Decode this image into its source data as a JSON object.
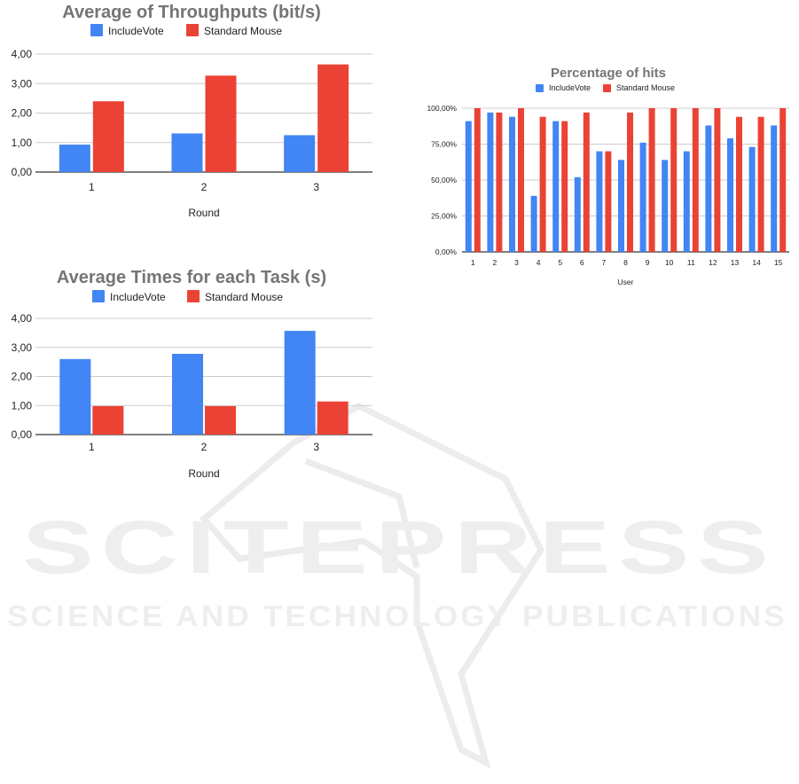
{
  "watermark": {
    "brand": "SCITEPRESS",
    "tagline": "SCIENCE AND TECHNOLOGY PUBLICATIONS"
  },
  "colors": {
    "series_a": "#4285f4",
    "series_b": "#ea4335",
    "grid": "#cccccc",
    "axis": "#333333",
    "title": "#757575"
  },
  "chart_data": [
    {
      "id": "throughput",
      "type": "bar",
      "title": "Average of Throughputs (bit/s)",
      "xlabel": "Round",
      "ylabel": "",
      "categories": [
        "1",
        "2",
        "3"
      ],
      "yticks": [
        "0,00",
        "1,00",
        "2,00",
        "3,00",
        "4,00"
      ],
      "ylim": [
        0,
        4
      ],
      "legend_position": "top",
      "grid": true,
      "series": [
        {
          "name": "IncludeVote",
          "color": "#4285f4",
          "values": [
            0.93,
            1.31,
            1.25
          ]
        },
        {
          "name": "Standard Mouse",
          "color": "#ea4335",
          "values": [
            2.4,
            3.27,
            3.65
          ]
        }
      ]
    },
    {
      "id": "times",
      "type": "bar",
      "title": "Average Times for each Task (s)",
      "xlabel": "Round",
      "ylabel": "",
      "categories": [
        "1",
        "2",
        "3"
      ],
      "yticks": [
        "0,00",
        "1,00",
        "2,00",
        "3,00",
        "4,00"
      ],
      "ylim": [
        0,
        4
      ],
      "legend_position": "top",
      "grid": true,
      "series": [
        {
          "name": "IncludeVote",
          "color": "#4285f4",
          "values": [
            2.6,
            2.78,
            3.57
          ]
        },
        {
          "name": "Standard Mouse",
          "color": "#ea4335",
          "values": [
            0.98,
            0.98,
            1.14
          ]
        }
      ]
    },
    {
      "id": "hits",
      "type": "bar",
      "title": "Percentage of hits",
      "xlabel": "User",
      "ylabel": "",
      "categories": [
        "1",
        "2",
        "3",
        "4",
        "5",
        "6",
        "7",
        "8",
        "9",
        "10",
        "11",
        "12",
        "13",
        "14",
        "15"
      ],
      "yticks": [
        "0,00%",
        "25,00%",
        "50,00%",
        "75,00%",
        "100,00%"
      ],
      "ylim": [
        0,
        100
      ],
      "legend_position": "top",
      "grid": true,
      "series": [
        {
          "name": "IncludeVote",
          "color": "#4285f4",
          "values": [
            91,
            97,
            94,
            39,
            91,
            52,
            70,
            64,
            76,
            64,
            70,
            88,
            79,
            73,
            88
          ]
        },
        {
          "name": "Standard Mouse",
          "color": "#ea4335",
          "values": [
            100,
            97,
            100,
            94,
            91,
            97,
            70,
            97,
            100,
            100,
            100,
            100,
            94,
            94,
            100
          ]
        }
      ]
    }
  ]
}
